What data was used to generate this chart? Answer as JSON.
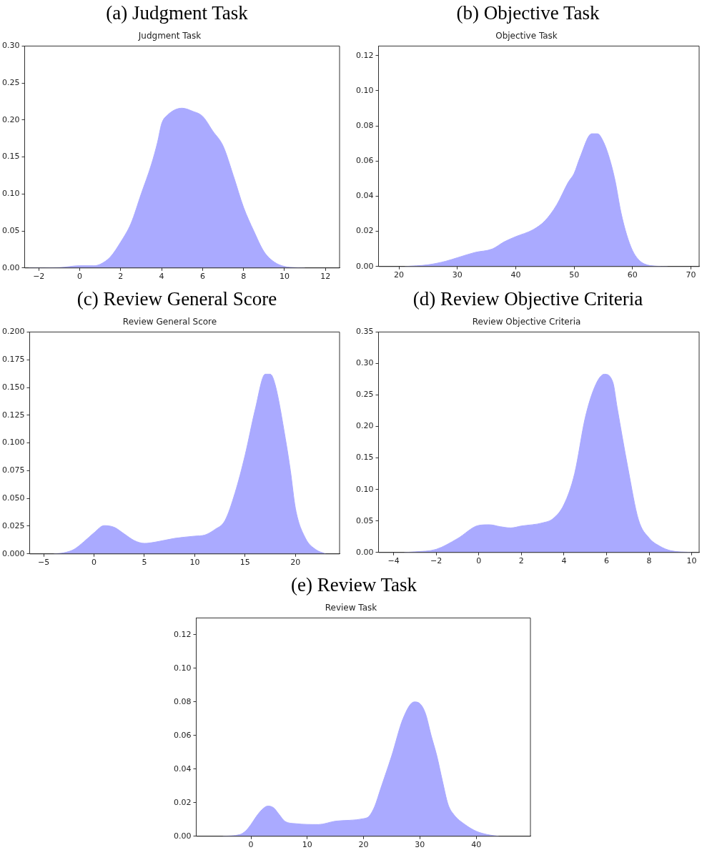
{
  "chart_data": [
    {
      "type": "area",
      "title": "(a) Judgment Task",
      "subtitle": "Judgment Task",
      "color": "#aaaaff",
      "marker": "none",
      "grid": false,
      "legend": false,
      "x": [
        -2.5,
        -1,
        0,
        0.7,
        1,
        1.5,
        2,
        2.5,
        3,
        3.5,
        3.8,
        4,
        4.3,
        5,
        5.5,
        6,
        6.5,
        7,
        7.5,
        8,
        8.5,
        9,
        9.5,
        10,
        10.5,
        11
      ],
      "values": [
        0,
        0.0005,
        0.003,
        0.003,
        0.005,
        0.015,
        0.035,
        0.06,
        0.1,
        0.14,
        0.17,
        0.195,
        0.207,
        0.216,
        0.212,
        0.205,
        0.185,
        0.165,
        0.125,
        0.082,
        0.05,
        0.022,
        0.008,
        0.002,
        0.0005,
        0
      ],
      "xlim": [
        -2.69,
        12.69
      ],
      "xticks": [
        {
          "value": -2,
          "label": "−2"
        },
        0,
        2,
        4,
        6,
        8,
        10,
        12
      ],
      "ylim": [
        0,
        0.3
      ],
      "yticks": [
        {
          "value": 0,
          "label": "0.00"
        },
        {
          "value": 0.05,
          "label": "0.05"
        },
        {
          "value": 0.1,
          "label": "0.10"
        },
        {
          "value": 0.15,
          "label": "0.15"
        },
        {
          "value": 0.2,
          "label": "0.20"
        },
        {
          "value": 0.25,
          "label": "0.25"
        },
        {
          "value": 0.3,
          "label": "0.30"
        }
      ]
    },
    {
      "type": "area",
      "title": "(b) Objective Task",
      "subtitle": "Objective Task",
      "color": "#aaaaff",
      "marker": "none",
      "grid": false,
      "legend": false,
      "x": [
        21,
        25,
        28,
        30,
        33,
        36,
        38,
        40,
        43,
        45,
        47,
        49,
        50,
        51,
        53,
        54,
        55,
        56,
        57,
        58,
        59,
        60,
        61,
        62,
        64,
        66
      ],
      "values": [
        0,
        0.001,
        0.003,
        0.005,
        0.008,
        0.01,
        0.014,
        0.017,
        0.021,
        0.026,
        0.035,
        0.048,
        0.053,
        0.062,
        0.0755,
        0.0755,
        0.071,
        0.062,
        0.049,
        0.031,
        0.018,
        0.009,
        0.004,
        0.0015,
        0.0002,
        0
      ],
      "xlim": [
        16.5,
        71.4
      ],
      "xticks": [
        20,
        30,
        40,
        50,
        60,
        70
      ],
      "ylim": [
        0,
        0.1254
      ],
      "yticks": [
        {
          "value": 0,
          "label": "0.00"
        },
        {
          "value": 0.02,
          "label": "0.02"
        },
        {
          "value": 0.04,
          "label": "0.04"
        },
        {
          "value": 0.06,
          "label": "0.06"
        },
        {
          "value": 0.08,
          "label": "0.08"
        },
        {
          "value": 0.1,
          "label": "0.10"
        },
        {
          "value": 0.12,
          "label": "0.12"
        }
      ]
    },
    {
      "type": "area",
      "title": "(c) Review General Score",
      "subtitle": "Review General Score",
      "color": "#aaaaff",
      "marker": "none",
      "grid": false,
      "legend": false,
      "x": [
        -4,
        -3,
        -2,
        -1,
        0,
        1,
        2,
        3,
        4,
        5,
        6,
        8,
        10,
        11,
        12,
        13,
        14,
        15,
        16,
        17,
        17.5,
        18,
        19,
        19.5,
        20,
        21,
        22,
        23
      ],
      "values": [
        0,
        0.001,
        0.004,
        0.011,
        0.019,
        0.0255,
        0.024,
        0.018,
        0.012,
        0.0095,
        0.0105,
        0.014,
        0.016,
        0.017,
        0.022,
        0.03,
        0.055,
        0.089,
        0.13,
        0.162,
        0.162,
        0.152,
        0.104,
        0.075,
        0.041,
        0.014,
        0.004,
        0
      ],
      "xlim": [
        -6.39,
        24.38
      ],
      "xticks": [
        {
          "value": -5,
          "label": "−5"
        },
        0,
        5,
        10,
        15,
        20
      ],
      "ylim": [
        0,
        0.2
      ],
      "yticks": [
        {
          "value": 0,
          "label": "0.000"
        },
        {
          "value": 0.025,
          "label": "0.025"
        },
        {
          "value": 0.05,
          "label": "0.050"
        },
        {
          "value": 0.075,
          "label": "0.075"
        },
        {
          "value": 0.1,
          "label": "0.100"
        },
        {
          "value": 0.125,
          "label": "0.125"
        },
        {
          "value": 0.15,
          "label": "0.150"
        },
        {
          "value": 0.175,
          "label": "0.175"
        },
        {
          "value": 0.2,
          "label": "0.200"
        }
      ]
    },
    {
      "type": "area",
      "title": "(d) Review Objective Criteria",
      "subtitle": "Review Objective Criteria",
      "color": "#aaaaff",
      "marker": "none",
      "grid": false,
      "legend": false,
      "x": [
        -3.5,
        -3,
        -2,
        -1,
        0,
        0.5,
        1,
        1.5,
        2,
        3,
        3.5,
        4,
        4.5,
        5,
        5.5,
        5.9,
        6.3,
        6.5,
        7,
        7.5,
        8,
        8.5,
        9,
        10
      ],
      "values": [
        0,
        0.001,
        0.005,
        0.022,
        0.043,
        0.044,
        0.041,
        0.039,
        0.042,
        0.047,
        0.054,
        0.076,
        0.125,
        0.214,
        0.267,
        0.283,
        0.27,
        0.23,
        0.135,
        0.052,
        0.023,
        0.01,
        0.003,
        0
      ],
      "xlim": [
        -4.71,
        10.35
      ],
      "xticks": [
        {
          "value": -4,
          "label": "−4"
        },
        {
          "value": -2,
          "label": "−2"
        },
        0,
        2,
        4,
        6,
        8,
        10
      ],
      "ylim": [
        0,
        0.35
      ],
      "yticks": [
        {
          "value": 0,
          "label": "0.00"
        },
        {
          "value": 0.05,
          "label": "0.05"
        },
        {
          "value": 0.1,
          "label": "0.10"
        },
        {
          "value": 0.15,
          "label": "0.15"
        },
        {
          "value": 0.2,
          "label": "0.20"
        },
        {
          "value": 0.25,
          "label": "0.25"
        },
        {
          "value": 0.3,
          "label": "0.30"
        },
        {
          "value": 0.35,
          "label": "0.35"
        }
      ]
    },
    {
      "type": "area",
      "title": "(e) Review Task",
      "subtitle": "Review Task",
      "color": "#aaaaff",
      "marker": "none",
      "grid": false,
      "legend": false,
      "x": [
        -5,
        -2,
        -1,
        0,
        1,
        2,
        3,
        4,
        5,
        6,
        8,
        12,
        15,
        20,
        21,
        22,
        23,
        25,
        27,
        29,
        30,
        31,
        32,
        33,
        34,
        35,
        36,
        38,
        40,
        42,
        44
      ],
      "values": [
        0,
        0.001,
        0.003,
        0.007,
        0.012,
        0.016,
        0.018,
        0.017,
        0.013,
        0.009,
        0.0075,
        0.007,
        0.009,
        0.0105,
        0.012,
        0.018,
        0.028,
        0.048,
        0.07,
        0.08,
        0.079,
        0.073,
        0.06,
        0.048,
        0.033,
        0.019,
        0.013,
        0.007,
        0.003,
        0.001,
        0
      ],
      "xlim": [
        -9.72,
        49.63
      ],
      "xticks": [
        0,
        10,
        20,
        30,
        40
      ],
      "ylim": [
        0,
        0.13
      ],
      "yticks": [
        {
          "value": 0,
          "label": "0.00"
        },
        {
          "value": 0.02,
          "label": "0.02"
        },
        {
          "value": 0.04,
          "label": "0.04"
        },
        {
          "value": 0.06,
          "label": "0.06"
        },
        {
          "value": 0.08,
          "label": "0.08"
        },
        {
          "value": 0.1,
          "label": "0.10"
        },
        {
          "value": 0.12,
          "label": "0.12"
        }
      ]
    }
  ]
}
